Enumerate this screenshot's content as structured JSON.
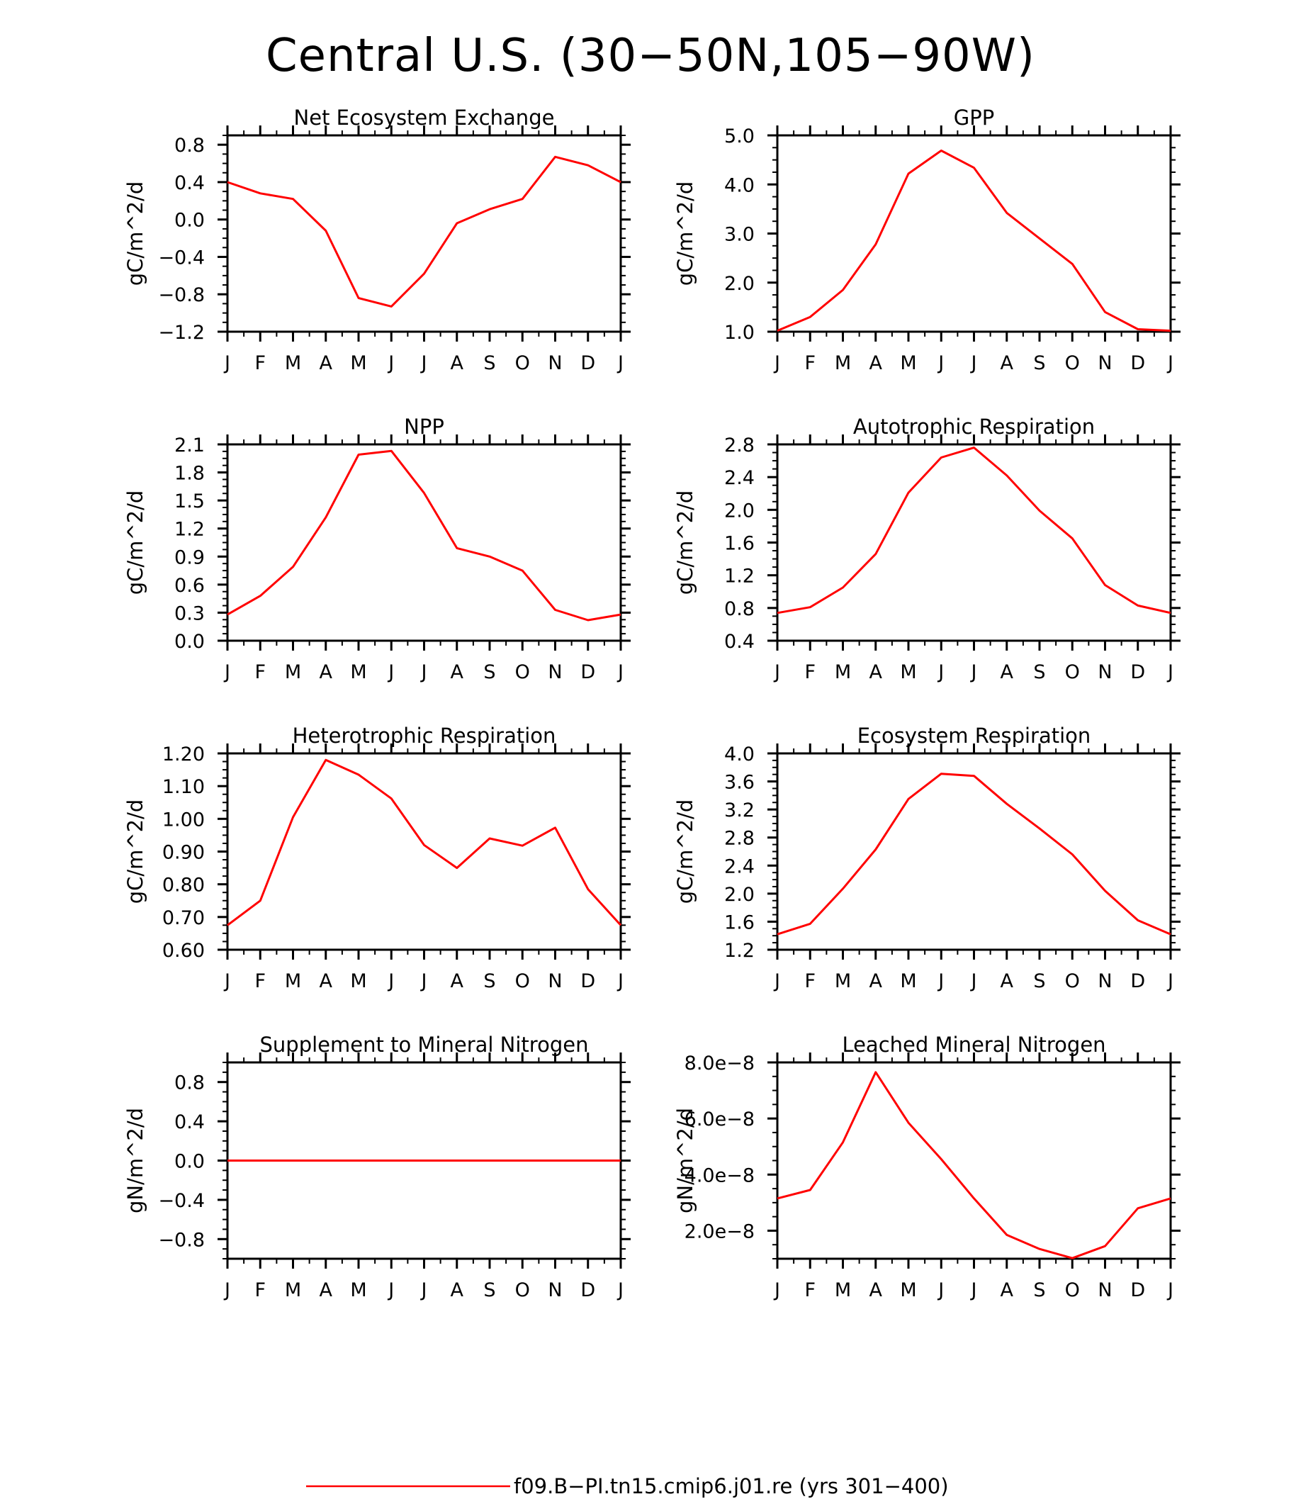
{
  "title": "Central U.S. (30−50N,105−90W)",
  "line_color": "#ff0000",
  "legend": {
    "label": "f09.B−PI.tn15.cmip6.j01.re (yrs 301−400)",
    "color": "#ff0000"
  },
  "chart_data": [
    {
      "type": "line",
      "title": "Net Ecosystem Exchange",
      "ylabel": "gC/m^2/d",
      "x": [
        "J",
        "F",
        "M",
        "A",
        "M",
        "J",
        "J",
        "A",
        "S",
        "O",
        "N",
        "D",
        "J"
      ],
      "series": [
        {
          "values": [
            0.4,
            0.28,
            0.22,
            -0.12,
            -0.84,
            -0.93,
            -0.58,
            -0.04,
            0.11,
            0.22,
            0.67,
            0.58,
            0.4
          ]
        }
      ],
      "ylim": [
        -1.2,
        0.9
      ],
      "yticks": [
        -1.2,
        -0.8,
        -0.4,
        0.0,
        0.4,
        0.8
      ],
      "ytick_labels": [
        "−1.2",
        "−0.8",
        "−0.4",
        "0.0",
        "0.4",
        "0.8"
      ]
    },
    {
      "type": "line",
      "title": "GPP",
      "ylabel": "gC/m^2/d",
      "x": [
        "J",
        "F",
        "M",
        "A",
        "M",
        "J",
        "J",
        "A",
        "S",
        "O",
        "N",
        "D",
        "J"
      ],
      "series": [
        {
          "values": [
            1.02,
            1.3,
            1.85,
            2.78,
            4.22,
            4.69,
            4.34,
            3.42,
            2.9,
            2.38,
            1.4,
            1.05,
            1.02
          ]
        }
      ],
      "ylim": [
        1.0,
        5.0
      ],
      "yticks": [
        1.0,
        2.0,
        3.0,
        4.0,
        5.0
      ],
      "ytick_labels": [
        "1.0",
        "2.0",
        "3.0",
        "4.0",
        "5.0"
      ]
    },
    {
      "type": "line",
      "title": "NPP",
      "ylabel": "gC/m^2/d",
      "x": [
        "J",
        "F",
        "M",
        "A",
        "M",
        "J",
        "J",
        "A",
        "S",
        "O",
        "N",
        "D",
        "J"
      ],
      "series": [
        {
          "values": [
            0.28,
            0.48,
            0.79,
            1.32,
            1.99,
            2.03,
            1.58,
            0.99,
            0.9,
            0.75,
            0.33,
            0.22,
            0.28
          ]
        }
      ],
      "ylim": [
        0.0,
        2.1
      ],
      "yticks": [
        0.0,
        0.3,
        0.6,
        0.9,
        1.2,
        1.5,
        1.8,
        2.1
      ],
      "ytick_labels": [
        "0.0",
        "0.3",
        "0.6",
        "0.9",
        "1.2",
        "1.5",
        "1.8",
        "2.1"
      ]
    },
    {
      "type": "line",
      "title": "Autotrophic Respiration",
      "ylabel": "gC/m^2/d",
      "x": [
        "J",
        "F",
        "M",
        "A",
        "M",
        "J",
        "J",
        "A",
        "S",
        "O",
        "N",
        "D",
        "J"
      ],
      "series": [
        {
          "values": [
            0.74,
            0.81,
            1.05,
            1.46,
            2.21,
            2.64,
            2.76,
            2.42,
            1.99,
            1.65,
            1.08,
            0.83,
            0.74
          ]
        }
      ],
      "ylim": [
        0.4,
        2.8
      ],
      "yticks": [
        0.4,
        0.8,
        1.2,
        1.6,
        2.0,
        2.4,
        2.8
      ],
      "ytick_labels": [
        "0.4",
        "0.8",
        "1.2",
        "1.6",
        "2.0",
        "2.4",
        "2.8"
      ]
    },
    {
      "type": "line",
      "title": "Heterotrophic Respiration",
      "ylabel": "gC/m^2/d",
      "x": [
        "J",
        "F",
        "M",
        "A",
        "M",
        "J",
        "J",
        "A",
        "S",
        "O",
        "N",
        "D",
        "J"
      ],
      "series": [
        {
          "values": [
            0.675,
            0.75,
            1.005,
            1.18,
            1.135,
            1.062,
            0.92,
            0.85,
            0.94,
            0.918,
            0.973,
            0.785,
            0.675
          ]
        }
      ],
      "ylim": [
        0.6,
        1.2
      ],
      "yticks": [
        0.6,
        0.7,
        0.8,
        0.9,
        1.0,
        1.1,
        1.2
      ],
      "ytick_labels": [
        "0.60",
        "0.70",
        "0.80",
        "0.90",
        "1.00",
        "1.10",
        "1.20"
      ]
    },
    {
      "type": "line",
      "title": "Ecosystem Respiration",
      "ylabel": "gC/m^2/d",
      "x": [
        "J",
        "F",
        "M",
        "A",
        "M",
        "J",
        "J",
        "A",
        "S",
        "O",
        "N",
        "D",
        "J"
      ],
      "series": [
        {
          "values": [
            1.42,
            1.57,
            2.07,
            2.63,
            3.35,
            3.71,
            3.68,
            3.28,
            2.93,
            2.56,
            2.04,
            1.62,
            1.42
          ]
        }
      ],
      "ylim": [
        1.2,
        4.0
      ],
      "yticks": [
        1.2,
        1.6,
        2.0,
        2.4,
        2.8,
        3.2,
        3.6,
        4.0
      ],
      "ytick_labels": [
        "1.2",
        "1.6",
        "2.0",
        "2.4",
        "2.8",
        "3.2",
        "3.6",
        "4.0"
      ]
    },
    {
      "type": "line",
      "title": "Supplement to Mineral Nitrogen",
      "ylabel": "gN/m^2/d",
      "x": [
        "J",
        "F",
        "M",
        "A",
        "M",
        "J",
        "J",
        "A",
        "S",
        "O",
        "N",
        "D",
        "J"
      ],
      "series": [
        {
          "values": [
            0,
            0,
            0,
            0,
            0,
            0,
            0,
            0,
            0,
            0,
            0,
            0,
            0
          ]
        }
      ],
      "ylim": [
        -1.0,
        1.0
      ],
      "yticks": [
        -0.8,
        -0.4,
        0.0,
        0.4,
        0.8
      ],
      "ytick_labels": [
        "−0.8",
        "−0.4",
        "0.0",
        "0.4",
        "0.8"
      ]
    },
    {
      "type": "line",
      "title": "Leached Mineral Nitrogen",
      "ylabel": "gN/m^2/d",
      "x": [
        "J",
        "F",
        "M",
        "A",
        "M",
        "J",
        "J",
        "A",
        "S",
        "O",
        "N",
        "D",
        "J"
      ],
      "series": [
        {
          "values": [
            3.15e-08,
            3.45e-08,
            5.15e-08,
            7.65e-08,
            5.85e-08,
            4.55e-08,
            3.15e-08,
            1.85e-08,
            1.35e-08,
            1.02e-08,
            1.45e-08,
            2.8e-08,
            3.15e-08
          ]
        }
      ],
      "ylim": [
        1e-08,
        8e-08
      ],
      "yticks": [
        2e-08,
        4e-08,
        6e-08,
        8e-08
      ],
      "ytick_labels": [
        "2.0e−8",
        "4.0e−8",
        "6.0e−8",
        "8.0e−8"
      ]
    }
  ]
}
